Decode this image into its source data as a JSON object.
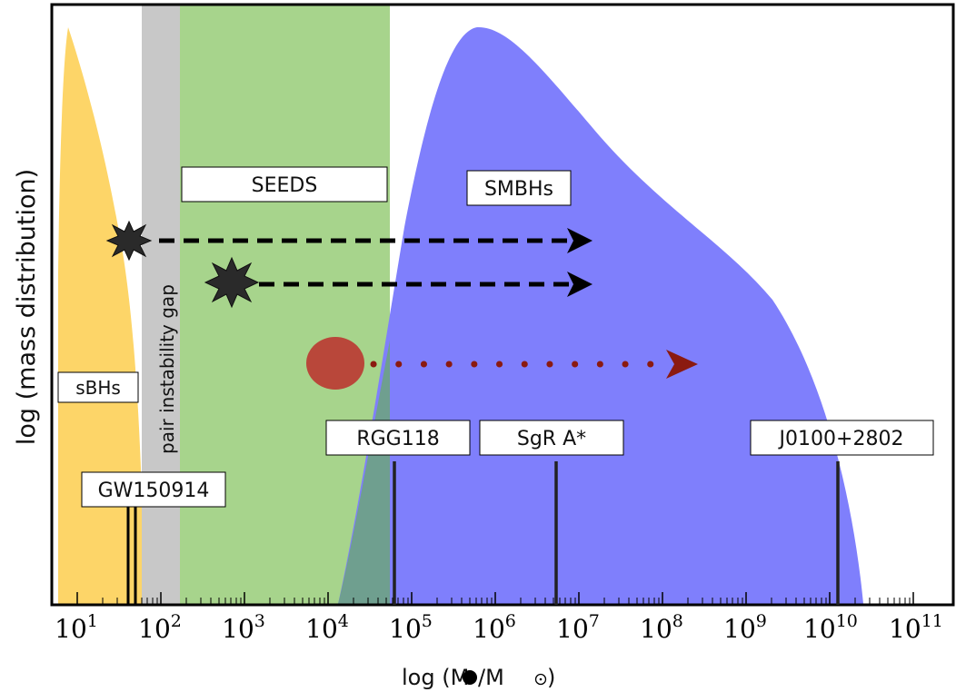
{
  "regions": {
    "sbh_label": "sBHs",
    "pair_gap_label": "pair instability gap",
    "seeds_label": "SEEDS",
    "smbh_label": "SMBHs"
  },
  "objects": [
    {
      "label": "GW150914",
      "log_mass": [
        1.5,
        1.6
      ]
    },
    {
      "label": "RGG118",
      "log_mass": 4.7
    },
    {
      "label": "SgR A*",
      "log_mass": 6.6
    },
    {
      "label": "J0100+2802",
      "log_mass": 10.1
    }
  ],
  "axes": {
    "xlabel_prefix": "log (M",
    "xlabel_mid": "/M",
    "xlabel_suffix": ")",
    "ylabel": "log (mass distribution)",
    "xticks": [
      {
        "base": "10",
        "exp": "1"
      },
      {
        "base": "10",
        "exp": "2"
      },
      {
        "base": "10",
        "exp": "3"
      },
      {
        "base": "10",
        "exp": "4"
      },
      {
        "base": "10",
        "exp": "5"
      },
      {
        "base": "10",
        "exp": "6"
      },
      {
        "base": "10",
        "exp": "7"
      },
      {
        "base": "10",
        "exp": "8"
      },
      {
        "base": "10",
        "exp": "9"
      },
      {
        "base": "10",
        "exp": "10"
      },
      {
        "base": "10",
        "exp": "11"
      }
    ],
    "x_scale": "log",
    "xlim_log": [
      0.7,
      11.4
    ]
  },
  "colors": {
    "sbh": "#fdd568",
    "pair_gap": "#c8c8c8",
    "seeds": "#a7d48c",
    "smbh": "#7f7ffc",
    "overlap": "#6f9f8f",
    "arrow_black": "#000000",
    "arrow_red": "#8b1a10",
    "seed_dot": "#b9473a"
  }
}
